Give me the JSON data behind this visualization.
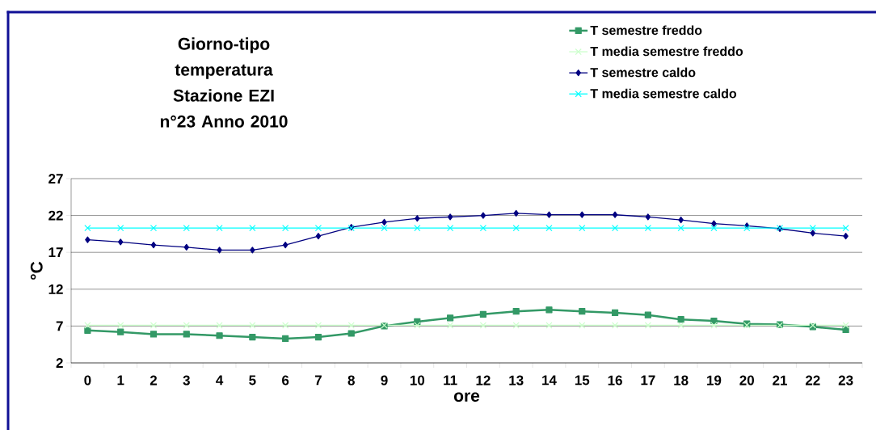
{
  "chart_data": {
    "type": "line",
    "title": "Giorno-tipo temperatura",
    "subtitle": "Stazione EZI n°23 Anno 2010",
    "xlabel": "ore",
    "ylabel": "°C",
    "categories": [
      "0",
      "1",
      "2",
      "3",
      "4",
      "5",
      "6",
      "7",
      "8",
      "9",
      "10",
      "11",
      "12",
      "13",
      "14",
      "15",
      "16",
      "17",
      "18",
      "19",
      "20",
      "21",
      "22",
      "23"
    ],
    "ylim": [
      2,
      27
    ],
    "yticks": [
      2,
      7,
      12,
      17,
      22,
      27
    ],
    "grid": "y",
    "legend": "top right",
    "series": [
      {
        "name": "T semestre freddo",
        "color": "#339966",
        "marker": "square",
        "values": [
          6.4,
          6.2,
          5.9,
          5.9,
          5.7,
          5.5,
          5.3,
          5.5,
          6.0,
          7.0,
          7.6,
          8.1,
          8.6,
          9.0,
          9.2,
          9.0,
          8.8,
          8.5,
          7.9,
          7.7,
          7.3,
          7.2,
          6.9,
          6.5
        ]
      },
      {
        "name": "T media semestre freddo",
        "color": "#ccffcc",
        "marker": "cross",
        "values": [
          7.1,
          7.1,
          7.1,
          7.1,
          7.1,
          7.1,
          7.1,
          7.1,
          7.1,
          7.1,
          7.1,
          7.1,
          7.1,
          7.1,
          7.1,
          7.1,
          7.1,
          7.1,
          7.1,
          7.1,
          7.1,
          7.1,
          7.1,
          7.1
        ]
      },
      {
        "name": "T semestre caldo",
        "color": "#000080",
        "marker": "diamond",
        "values": [
          18.7,
          18.4,
          18.0,
          17.7,
          17.3,
          17.3,
          18.0,
          19.2,
          20.4,
          21.1,
          21.6,
          21.8,
          22.0,
          22.3,
          22.1,
          22.1,
          22.1,
          21.8,
          21.4,
          20.9,
          20.6,
          20.2,
          19.6,
          19.2
        ]
      },
      {
        "name": "T media semestre caldo",
        "color": "#00ffff",
        "marker": "cross",
        "values": [
          20.3,
          20.3,
          20.3,
          20.3,
          20.3,
          20.3,
          20.3,
          20.3,
          20.3,
          20.3,
          20.3,
          20.3,
          20.3,
          20.3,
          20.3,
          20.3,
          20.3,
          20.3,
          20.3,
          20.3,
          20.3,
          20.3,
          20.3,
          20.3
        ]
      }
    ]
  }
}
